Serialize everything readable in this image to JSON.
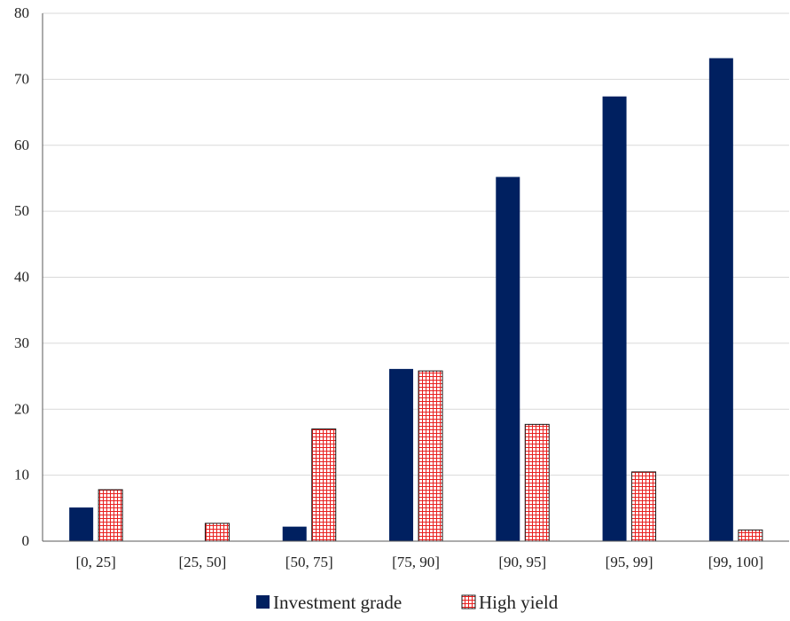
{
  "chart_data": {
    "type": "bar",
    "categories": [
      "[0, 25]",
      "[25, 50]",
      "[50, 75]",
      "[75, 90]",
      "[90, 95]",
      "[95, 99]",
      "[99, 100]"
    ],
    "series": [
      {
        "name": "Investment grade",
        "values": [
          5.1,
          0,
          2.2,
          26.1,
          55.2,
          67.4,
          73.2
        ],
        "color": "#002060",
        "pattern": "solid"
      },
      {
        "name": "High yield",
        "values": [
          7.8,
          2.7,
          17.0,
          25.8,
          17.7,
          10.5,
          1.7
        ],
        "color": "#ff0000",
        "pattern": "grid-hatch"
      }
    ],
    "title": "",
    "xlabel": "",
    "ylabel": "",
    "ylim": [
      0,
      80
    ],
    "yticks": [
      "0",
      "10",
      "20",
      "30",
      "40",
      "50",
      "60",
      "70",
      "80"
    ],
    "grid": true,
    "legend_position": "bottom"
  }
}
